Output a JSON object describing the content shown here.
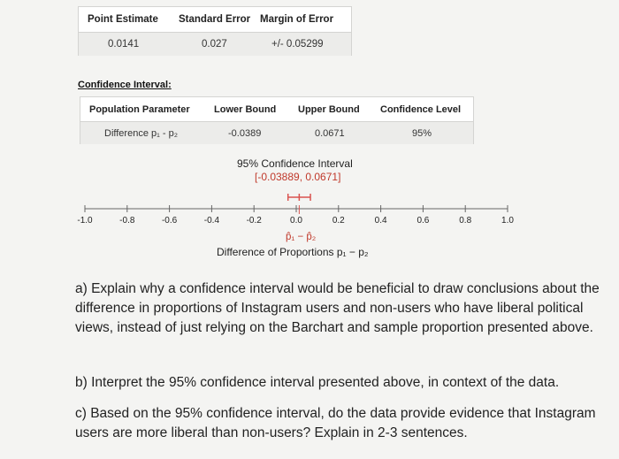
{
  "summary_table": {
    "headers": [
      "Point Estimate",
      "Standard Error",
      "Margin of Error"
    ],
    "values": [
      "0.0141",
      "0.027",
      "+/- 0.05299"
    ]
  },
  "ci_section": {
    "label": "Confidence Interval:",
    "headers": [
      "Population Parameter",
      "Lower Bound",
      "Upper Bound",
      "Confidence Level"
    ],
    "values": [
      "Difference p₁ - p₂",
      "-0.0389",
      "0.0671",
      "95%"
    ]
  },
  "ci_plot": {
    "title": "95% Confidence Interval",
    "range_label": "[-0.03889, 0.0671]",
    "point_label": "p̂₁ − p̂₂",
    "axis_label": "Difference of Proportions p₁ − p₂",
    "ticks": [
      "-1.0",
      "-0.8",
      "-0.6",
      "-0.4",
      "-0.2",
      "0.0",
      "0.2",
      "0.4",
      "0.6",
      "0.8",
      "1.0"
    ],
    "colors": {
      "interval": "#d9534f",
      "axis": "#666666"
    }
  },
  "chart_data": {
    "type": "scatter",
    "title": "95% Confidence Interval",
    "xlabel": "Difference of Proportions p₁ − p₂",
    "xlim": [
      -1.0,
      1.0
    ],
    "x_ticks": [
      -1.0,
      -0.8,
      -0.6,
      -0.4,
      -0.2,
      0.0,
      0.2,
      0.4,
      0.6,
      0.8,
      1.0
    ],
    "interval": {
      "lower": -0.03889,
      "upper": 0.0671,
      "point": 0.0141
    }
  },
  "questions": {
    "a": "a) Explain why a confidence interval would be beneficial to draw conclusions about the difference in proportions of Instagram users and non-users who have liberal political views, instead of just relying on the Barchart and sample proportion presented above.",
    "b": "b) Interpret the 95% confidence interval presented above, in context of the data.",
    "c": "c) Based on the 95% confidence interval, do the data provide evidence that Instagram users are more liberal than non-users? Explain in 2-3 sentences."
  }
}
